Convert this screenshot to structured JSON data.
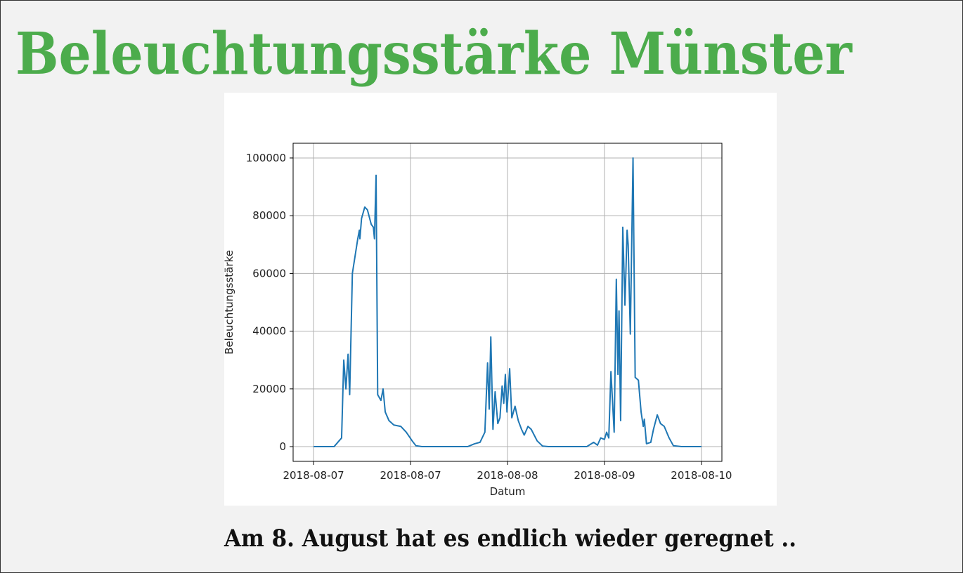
{
  "header": {
    "title": "Beleuchtungsstärke Münster"
  },
  "caption": "Am 8. August hat es endlich wieder geregnet ..",
  "chart_data": {
    "type": "line",
    "xlabel": "Datum",
    "ylabel": "Beleuchtungsstärke",
    "color": "#1f77b4",
    "grid": true,
    "x": [
      0,
      3.8,
      5.2,
      5.6,
      6.0,
      6.4,
      6.7,
      7.2,
      7.7,
      8.2,
      8.5,
      8.6,
      8.9,
      9.5,
      10.0,
      10.7,
      11.1,
      11.3,
      11.6,
      11.9,
      12.5,
      12.9,
      13.3,
      14.0,
      14.9,
      16.2,
      17.2,
      18.3,
      19.0,
      20.1,
      28.6,
      29.9,
      30.9,
      31.8,
      32.3,
      32.6,
      32.9,
      33.3,
      33.7,
      34.2,
      34.6,
      35.0,
      35.3,
      35.6,
      35.9,
      36.4,
      36.8,
      37.4,
      38.0,
      38.6,
      39.1,
      39.8,
      40.4,
      41.5,
      42.5,
      43.6,
      50.7,
      52.0,
      52.7,
      53.3,
      54.0,
      54.4,
      54.8,
      55.2,
      55.8,
      56.2,
      56.5,
      56.7,
      57.0,
      57.4,
      57.8,
      58.2,
      58.4,
      58.8,
      59.3,
      59.7,
      60.3,
      60.8,
      61.2,
      61.4,
      61.8,
      62.6,
      63.1,
      63.8,
      64.4,
      65.1,
      66.0,
      66.8,
      68.3,
      72.0
    ],
    "values": [
      0,
      0,
      3000,
      30000,
      20000,
      32000,
      18000,
      60000,
      66000,
      72000,
      75000,
      72000,
      79000,
      83000,
      82000,
      77000,
      76000,
      72000,
      94000,
      18000,
      16000,
      20000,
      12000,
      9000,
      7500,
      7000,
      5000,
      2000,
      300,
      0,
      0,
      1000,
      1500,
      5000,
      29000,
      13000,
      38000,
      6000,
      19000,
      8000,
      10000,
      21000,
      15000,
      25000,
      12000,
      27000,
      10000,
      14000,
      9000,
      6000,
      4000,
      7000,
      6000,
      2000,
      200,
      0,
      0,
      1500,
      500,
      3000,
      2500,
      5000,
      3000,
      26000,
      5000,
      58000,
      25000,
      47000,
      9000,
      76000,
      49000,
      75000,
      70000,
      39000,
      100000,
      24000,
      23000,
      12000,
      7000,
      9500,
      1000,
      1500,
      6000,
      11000,
      8000,
      7000,
      3000,
      300,
      0,
      0
    ],
    "xlim": [
      -3.8,
      75.8
    ],
    "xticks": [
      {
        "value": 0,
        "label": "2018-08-07"
      },
      {
        "value": 18,
        "label": "2018-08-07"
      },
      {
        "value": 36,
        "label": "2018-08-08"
      },
      {
        "value": 54,
        "label": "2018-08-09"
      },
      {
        "value": 72,
        "label": "2018-08-10"
      }
    ],
    "ylim": [
      -5100,
      105100
    ],
    "yticks": [
      0,
      20000,
      40000,
      60000,
      80000,
      100000
    ]
  }
}
